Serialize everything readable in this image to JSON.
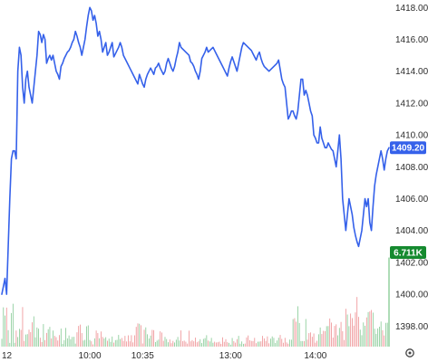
{
  "chart_data": {
    "type": "line",
    "y_axis": {
      "ticks": [
        1418,
        1416,
        1414,
        1412,
        1410,
        1408,
        1406,
        1404,
        1402,
        1400,
        1398
      ],
      "tick_labels": [
        "1418.00",
        "1416.00",
        "1414.00",
        "1412.00",
        "1410.00",
        "1408.00",
        "1406.00",
        "1404.00",
        "1402.00",
        "1400.00",
        "1398.00"
      ],
      "ylim": [
        1396.6,
        1418.3
      ],
      "position": "right"
    },
    "x_axis": {
      "tick_labels": [
        "12",
        "10:00",
        "10:35",
        "13:00",
        "14:00"
      ],
      "tick_index": [
        0,
        55,
        88,
        143,
        196
      ],
      "n_points": 237
    },
    "series": [
      {
        "kind": "price",
        "color": "#3561ea",
        "values": [
          1400,
          1400.5,
          1401,
          1400,
          1403,
          1406,
          1408.5,
          1409,
          1409,
          1408.5,
          1414,
          1415.5,
          1415,
          1413,
          1412,
          1413.5,
          1414,
          1413,
          1412.5,
          1412,
          1413,
          1414,
          1415,
          1416.5,
          1416.3,
          1415.8,
          1416.3,
          1416,
          1414.5,
          1414.8,
          1415,
          1414.7,
          1415,
          1414.5,
          1414,
          1413.8,
          1413.5,
          1414.3,
          1414.5,
          1414.8,
          1415,
          1415.2,
          1415.3,
          1415.5,
          1415.8,
          1416,
          1416.5,
          1416.2,
          1415.8,
          1415.5,
          1415,
          1415.5,
          1416,
          1416.8,
          1417.5,
          1418,
          1417.8,
          1417.2,
          1417.5,
          1417,
          1416.2,
          1416.5,
          1416,
          1415.2,
          1415.5,
          1415.8,
          1415,
          1415.2,
          1415.5,
          1415.8,
          1414.9,
          1415.1,
          1415.3,
          1415.5,
          1415.8,
          1415.5,
          1415,
          1414.8,
          1414.6,
          1414.4,
          1414.2,
          1414,
          1413.8,
          1413.6,
          1413.4,
          1413.2,
          1413.8,
          1413.5,
          1413.2,
          1413,
          1413.5,
          1413.8,
          1414,
          1414.2,
          1414,
          1413.8,
          1414.2,
          1414.3,
          1414.5,
          1414.2,
          1414,
          1413.8,
          1414,
          1414.5,
          1414.8,
          1414.5,
          1414.2,
          1414,
          1414.3,
          1414.8,
          1415.2,
          1415.8,
          1415.5,
          1415.4,
          1415.3,
          1415.2,
          1415.1,
          1415,
          1414.6,
          1414.5,
          1414.3,
          1414,
          1413.8,
          1413.5,
          1414,
          1414.8,
          1415,
          1415.2,
          1415.5,
          1415.2,
          1415.3,
          1415.4,
          1415.5,
          1415.3,
          1415.1,
          1414.9,
          1414.7,
          1414.5,
          1414.3,
          1414.1,
          1413.9,
          1413.7,
          1414.2,
          1414.6,
          1414.9,
          1414.6,
          1414.3,
          1414,
          1414.5,
          1415,
          1415.5,
          1415.8,
          1415.7,
          1415.6,
          1415.5,
          1415.4,
          1415.3,
          1415.1,
          1414.9,
          1414.7,
          1415,
          1415.2,
          1414.8,
          1414.5,
          1414.3,
          1414.2,
          1414.1,
          1414,
          1414.1,
          1414.2,
          1414.3,
          1414.4,
          1414.5,
          1414.7,
          1414.1,
          1413.5,
          1413.2,
          1413,
          1412,
          1411,
          1411.2,
          1411.5,
          1411.5,
          1411.2,
          1411,
          1411.5,
          1412.5,
          1413.5,
          1413.5,
          1412.5,
          1412.8,
          1412.5,
          1412,
          1411.5,
          1411.2,
          1410,
          1409.8,
          1409.5,
          1409.5,
          1410.5,
          1409.8,
          1409.5,
          1409.2,
          1409.2,
          1409.5,
          1409.3,
          1409.1,
          1409,
          1408.5,
          1408,
          1409,
          1410,
          1408.5,
          1406,
          1405,
          1404,
          1405,
          1406,
          1405.5,
          1405,
          1404.2,
          1403.7,
          1403.3,
          1403,
          1403.5,
          1404,
          1405,
          1406,
          1405.5,
          1406,
          1404.5,
          1404,
          1405.5,
          1406.8,
          1407.5,
          1408,
          1408.5,
          1409,
          1408.5,
          1407.8,
          1408.5,
          1409,
          1409.2
        ]
      },
      {
        "kind": "volume",
        "up_color": "#1f9d3a",
        "down_color": "#e0343a",
        "values": [
          0.59,
          2.96,
          2.34,
          2.94,
          1.24,
          0.28,
          2.53,
          3.23,
          0.29,
          1.21,
          0.72,
          1.34,
          1.26,
          2.98,
          0.43,
          0.91,
          0.94,
          1.28,
          1.09,
          1.83,
          2.28,
          0.7,
          1.44,
          1.35,
          0.67,
          0.34,
          1.7,
          0.49,
          1.03,
          1.31,
          1.49,
          0.62,
          1.21,
          0.81,
          0.71,
          0.46,
          0.87,
          1.36,
          0.21,
          0.49,
          1.41,
          0.62,
          0.84,
          0.56,
          0.73,
          0.74,
          0.23,
          1.08,
          1.56,
          1.66,
          1.02,
          0.46,
          0.51,
          1.53,
          1.6,
          0.5,
          0.4,
          0.17,
          0.62,
          1.21,
          1.02,
          0.63,
          1.14,
          0.73,
          0.61,
          0.71,
          0.44,
          0.6,
          0.36,
          0.76,
          0.3,
          0.49,
          0.51,
          0.88,
          0.57,
          0.65,
          0.43,
          0.81,
          0.39,
          0.85,
          0.4,
          0.86,
          0.32,
          0.85,
          1.49,
          1.75,
          1.72,
          1.61,
          0.24,
          1.27,
          1.45,
          0.93,
          0.61,
          0.83,
          1.26,
          1.24,
          0.34,
          0.45,
          0.53,
          1.15,
          1.06,
          0.44,
          0.73,
          0.57,
          0.33,
          0.54,
          0.26,
          0.43,
          0.31,
          0.52,
          0.73,
          0.46,
          1.22,
          0.41,
          0.45,
          0.37,
          0.23,
          1.2,
          0.4,
          0.49,
          0.4,
          0.68,
          0.33,
          0.4,
          0.56,
          0.27,
          0.58,
          0.64,
          0.86,
          0.45,
          0.39,
          0.66,
          0.29,
          0.37,
          0.31,
          0.33,
          0.37,
          0.21,
          0.7,
          0.36,
          0.56,
          0.33,
          0.28,
          0.15,
          0.65,
          0.41,
          0.3,
          0.56,
          0.81,
          0.22,
          0.39,
          0.21,
          0.23,
          0.69,
          0.84,
          0.48,
          0.43,
          0.42,
          0.66,
          0.26,
          0.37,
          0.38,
          0.4,
          0.81,
          0.62,
          0.43,
          0.77,
          0.25,
          0.6,
          0.77,
          0.66,
          0.28,
          0.46,
          0.67,
          0.88,
          0.58,
          0.29,
          0.66,
          0.32,
          0.22,
          0.53,
          0.52,
          2.07,
          2.14,
          1.88,
          3.04,
          1.78,
          0.42,
          0.42,
          0.42,
          2.08,
          0.53,
          1.02,
          1.07,
          0.74,
          0.99,
          0.3,
          0.44,
          0.93,
          1.44,
          0.95,
          1.19,
          1.17,
          1.54,
          1.55,
          2.12,
          1.81,
          0.68,
          1.56,
          1.68,
          0.85,
          1.41,
          1.86,
          1.16,
          0.5,
          2.85,
          2.42,
          1.54,
          2.49,
          2.15,
          1.58,
          2.58,
          3.74,
          2.24,
          1.28,
          0.86,
          1.82,
          1.57,
          2.2,
          2.6,
          2.65,
          2.76,
          2.56,
          1.35,
          0.96,
          1.37,
          1.5,
          1.89,
          1.23,
          0.84,
          1.79,
          1.8,
          6.711
        ],
        "ylim": [
          0,
          7.5
        ],
        "last_label": "6.711K"
      }
    ],
    "last_price_label": "1409.20",
    "price_badge_color": "#3561ea",
    "volume_badge_color": "#158a2f"
  },
  "settings_icon": "gear-icon"
}
